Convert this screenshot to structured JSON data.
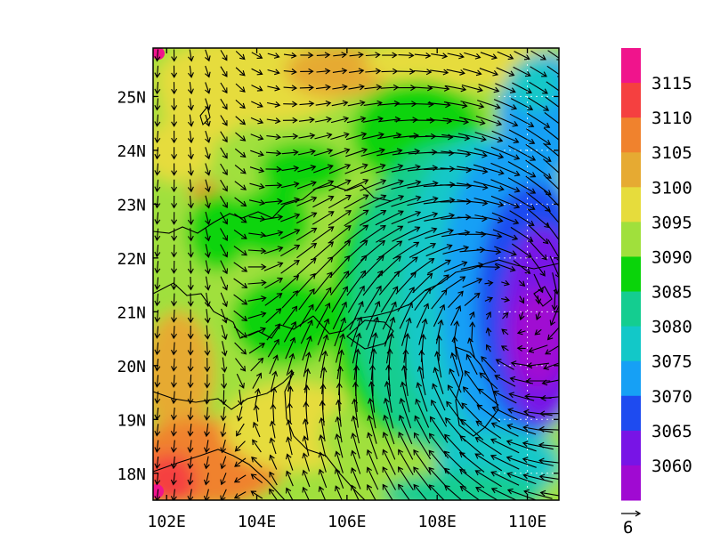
{
  "map": {
    "lon_ticks": [
      "102E",
      "104E",
      "106E",
      "108E",
      "110E"
    ],
    "lat_ticks": [
      "18N",
      "19N",
      "20N",
      "21N",
      "22N",
      "23N",
      "24N",
      "25N"
    ],
    "lon_values": [
      102,
      104,
      106,
      108,
      110
    ],
    "lat_values": [
      18,
      19,
      20,
      21,
      22,
      23,
      24,
      25
    ],
    "lon_range": [
      101.7,
      110.7
    ],
    "lat_range": [
      17.5,
      25.9
    ],
    "gridlines": "dotted",
    "cyclone_center_lon": 109.6,
    "cyclone_center_lat": 20.9
  },
  "colorbar": {
    "levels": [
      "3115",
      "3110",
      "3105",
      "3100",
      "3095",
      "3090",
      "3085",
      "3080",
      "3075",
      "3070",
      "3065",
      "3060"
    ],
    "colors": [
      "#f0148c",
      "#f54040",
      "#f0822d",
      "#e6aa32",
      "#e6dc3c",
      "#a0e03c",
      "#0ad40a",
      "#14cd90",
      "#12c8c8",
      "#16a0f5",
      "#1e4bf0",
      "#7814e6",
      "#a00ad2"
    ]
  },
  "vector_reference": {
    "label": "6"
  }
}
